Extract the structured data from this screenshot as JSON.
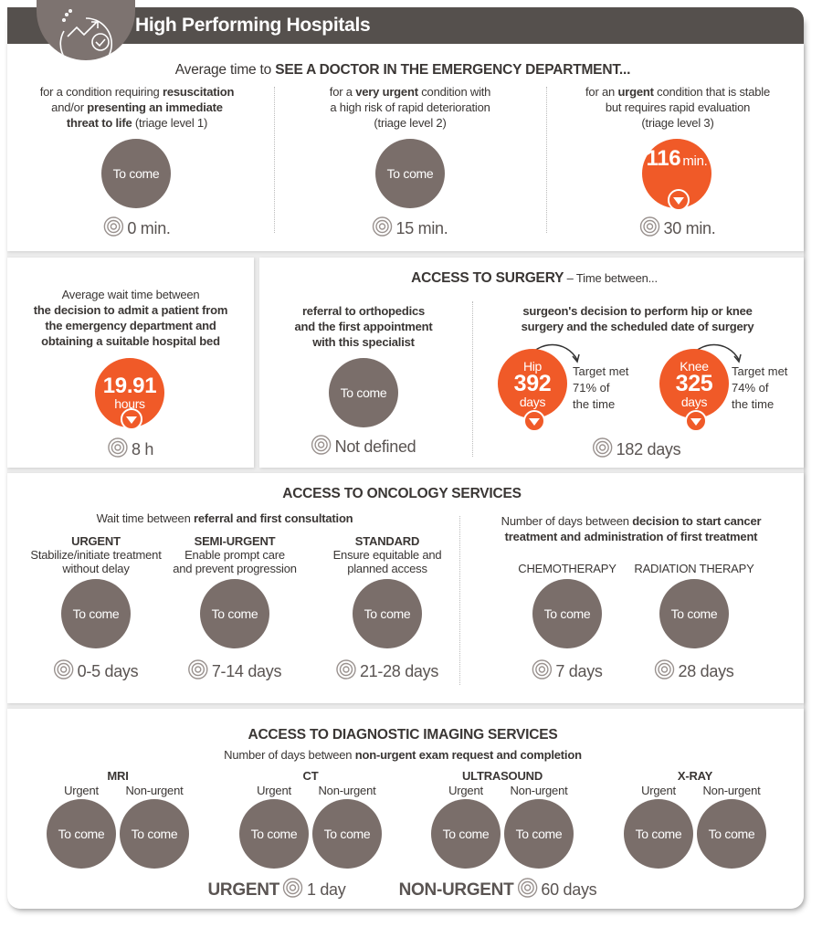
{
  "header": {
    "title": "High Performing Hospitals",
    "icon": "trend-check-icon"
  },
  "colors": {
    "gray_circle": "#7a6e6a",
    "orange": "#f05a28",
    "header": "#55504d"
  },
  "ed": {
    "title_pre": "Average time to ",
    "title_bold": "SEE A DOCTOR IN THE EMERGENCY DEPARTMENT...",
    "cols": [
      {
        "lines": [
          [
            {
              "t": "for a condition requiring "
            },
            {
              "t": "resuscitation",
              "b": 1
            }
          ],
          [
            {
              "t": "and/or "
            },
            {
              "t": "presenting an immediate",
              "b": 1
            }
          ],
          [
            {
              "t": "threat to life",
              "b": 1
            },
            {
              "t": " (triage level 1)"
            }
          ]
        ],
        "value": "To come",
        "target": "0 min."
      },
      {
        "lines": [
          [
            {
              "t": "for a "
            },
            {
              "t": "very urgent",
              "b": 1
            },
            {
              "t": " condition with"
            }
          ],
          [
            {
              "t": "a high risk of rapid deterioration"
            }
          ],
          [
            {
              "t": "(triage level 2)"
            }
          ]
        ],
        "value": "To come",
        "target": "15 min."
      },
      {
        "lines": [
          [
            {
              "t": "for an "
            },
            {
              "t": "urgent",
              "b": 1
            },
            {
              "t": " condition that is stable"
            }
          ],
          [
            {
              "t": "but requires rapid evaluation"
            }
          ],
          [
            {
              "t": "(triage level 3)"
            }
          ]
        ],
        "value": "116",
        "unit": "min.",
        "target": "30 min.",
        "status": "below-target"
      }
    ]
  },
  "bed": {
    "lines": [
      [
        {
          "t": "Average wait time between"
        }
      ],
      [
        {
          "t": "the decision to admit a patient from",
          "b": 1
        }
      ],
      [
        {
          "t": "the emergency department and",
          "b": 1
        }
      ],
      [
        {
          "t": "obtaining a suitable hospital bed",
          "b": 1
        }
      ]
    ],
    "value": "19.91",
    "unit": "hours",
    "target": "8 h"
  },
  "surgery": {
    "title_bold": "ACCESS TO SURGERY",
    "title_rest": " – Time between...",
    "ortho": {
      "lines": [
        [
          {
            "t": "referral to orthopedics",
            "b": 1
          }
        ],
        [
          {
            "t": "and the first appointment",
            "b": 1
          }
        ],
        [
          {
            "t": "with this specialist",
            "b": 1
          }
        ]
      ],
      "value": "To come",
      "target": "Not defined"
    },
    "hipknee": {
      "lines": [
        [
          {
            "t": "surgeon's decision to perform hip or knee",
            "b": 1
          }
        ],
        [
          {
            "t": "surgery and the scheduled date of surgery",
            "b": 1
          }
        ]
      ],
      "hip": {
        "label": "Hip",
        "value": "392",
        "unit": "days",
        "target_lines": [
          "Target met",
          "71% of",
          "the time"
        ]
      },
      "knee": {
        "label": "Knee",
        "value": "325",
        "unit": "days",
        "target_lines": [
          "Target met",
          "74% of",
          "the time"
        ]
      },
      "target": "182 days"
    }
  },
  "oncology": {
    "title": "ACCESS TO ONCOLOGY SERVICES",
    "left_sub": [
      {
        "t": "Wait time between "
      },
      {
        "t": "referral and first consultation",
        "b": 1
      }
    ],
    "cats": [
      {
        "label": "URGENT",
        "desc": [
          "Stabilize/initiate treatment",
          "without delay"
        ],
        "value": "To come",
        "target": "0-5 days"
      },
      {
        "label": "SEMI-URGENT",
        "desc": [
          "Enable prompt care",
          "and prevent progression"
        ],
        "value": "To come",
        "target": "7-14 days"
      },
      {
        "label": "STANDARD",
        "desc": [
          "Ensure equitable and",
          "planned access"
        ],
        "value": "To come",
        "target": "21-28 days"
      }
    ],
    "right_sub": [
      [
        {
          "t": "Number of days between "
        },
        {
          "t": "decision to start cancer",
          "b": 1
        }
      ],
      [
        {
          "t": "treatment and administration of first treatment",
          "b": 1
        }
      ]
    ],
    "treat": [
      {
        "label": "CHEMOTHERAPY",
        "value": "To come",
        "target": "7 days"
      },
      {
        "label": "RADIATION THERAPY",
        "value": "To come",
        "target": "28 days"
      }
    ]
  },
  "imaging": {
    "title": "ACCESS TO DIAGNOSTIC IMAGING SERVICES",
    "sub": [
      {
        "t": "Number of days between "
      },
      {
        "t": "non-urgent exam request and completion",
        "b": 1
      }
    ],
    "groups": [
      {
        "name": "MRI",
        "u": "Urgent",
        "n": "Non-urgent",
        "uv": "To come",
        "nv": "To come"
      },
      {
        "name": "CT",
        "u": "Urgent",
        "n": "Non-urgent",
        "uv": "To come",
        "nv": "To come"
      },
      {
        "name": "ULTRASOUND",
        "u": "Urgent",
        "n": "Non-urgent",
        "uv": "To come",
        "nv": "To come"
      },
      {
        "name": "X-RAY",
        "u": "Urgent",
        "n": "Non-urgent",
        "uv": "To come",
        "nv": "To come"
      }
    ],
    "urgent_label": "URGENT",
    "urgent_target": "1 day",
    "nonurgent_label": "NON-URGENT",
    "nonurgent_target": "60 days"
  }
}
